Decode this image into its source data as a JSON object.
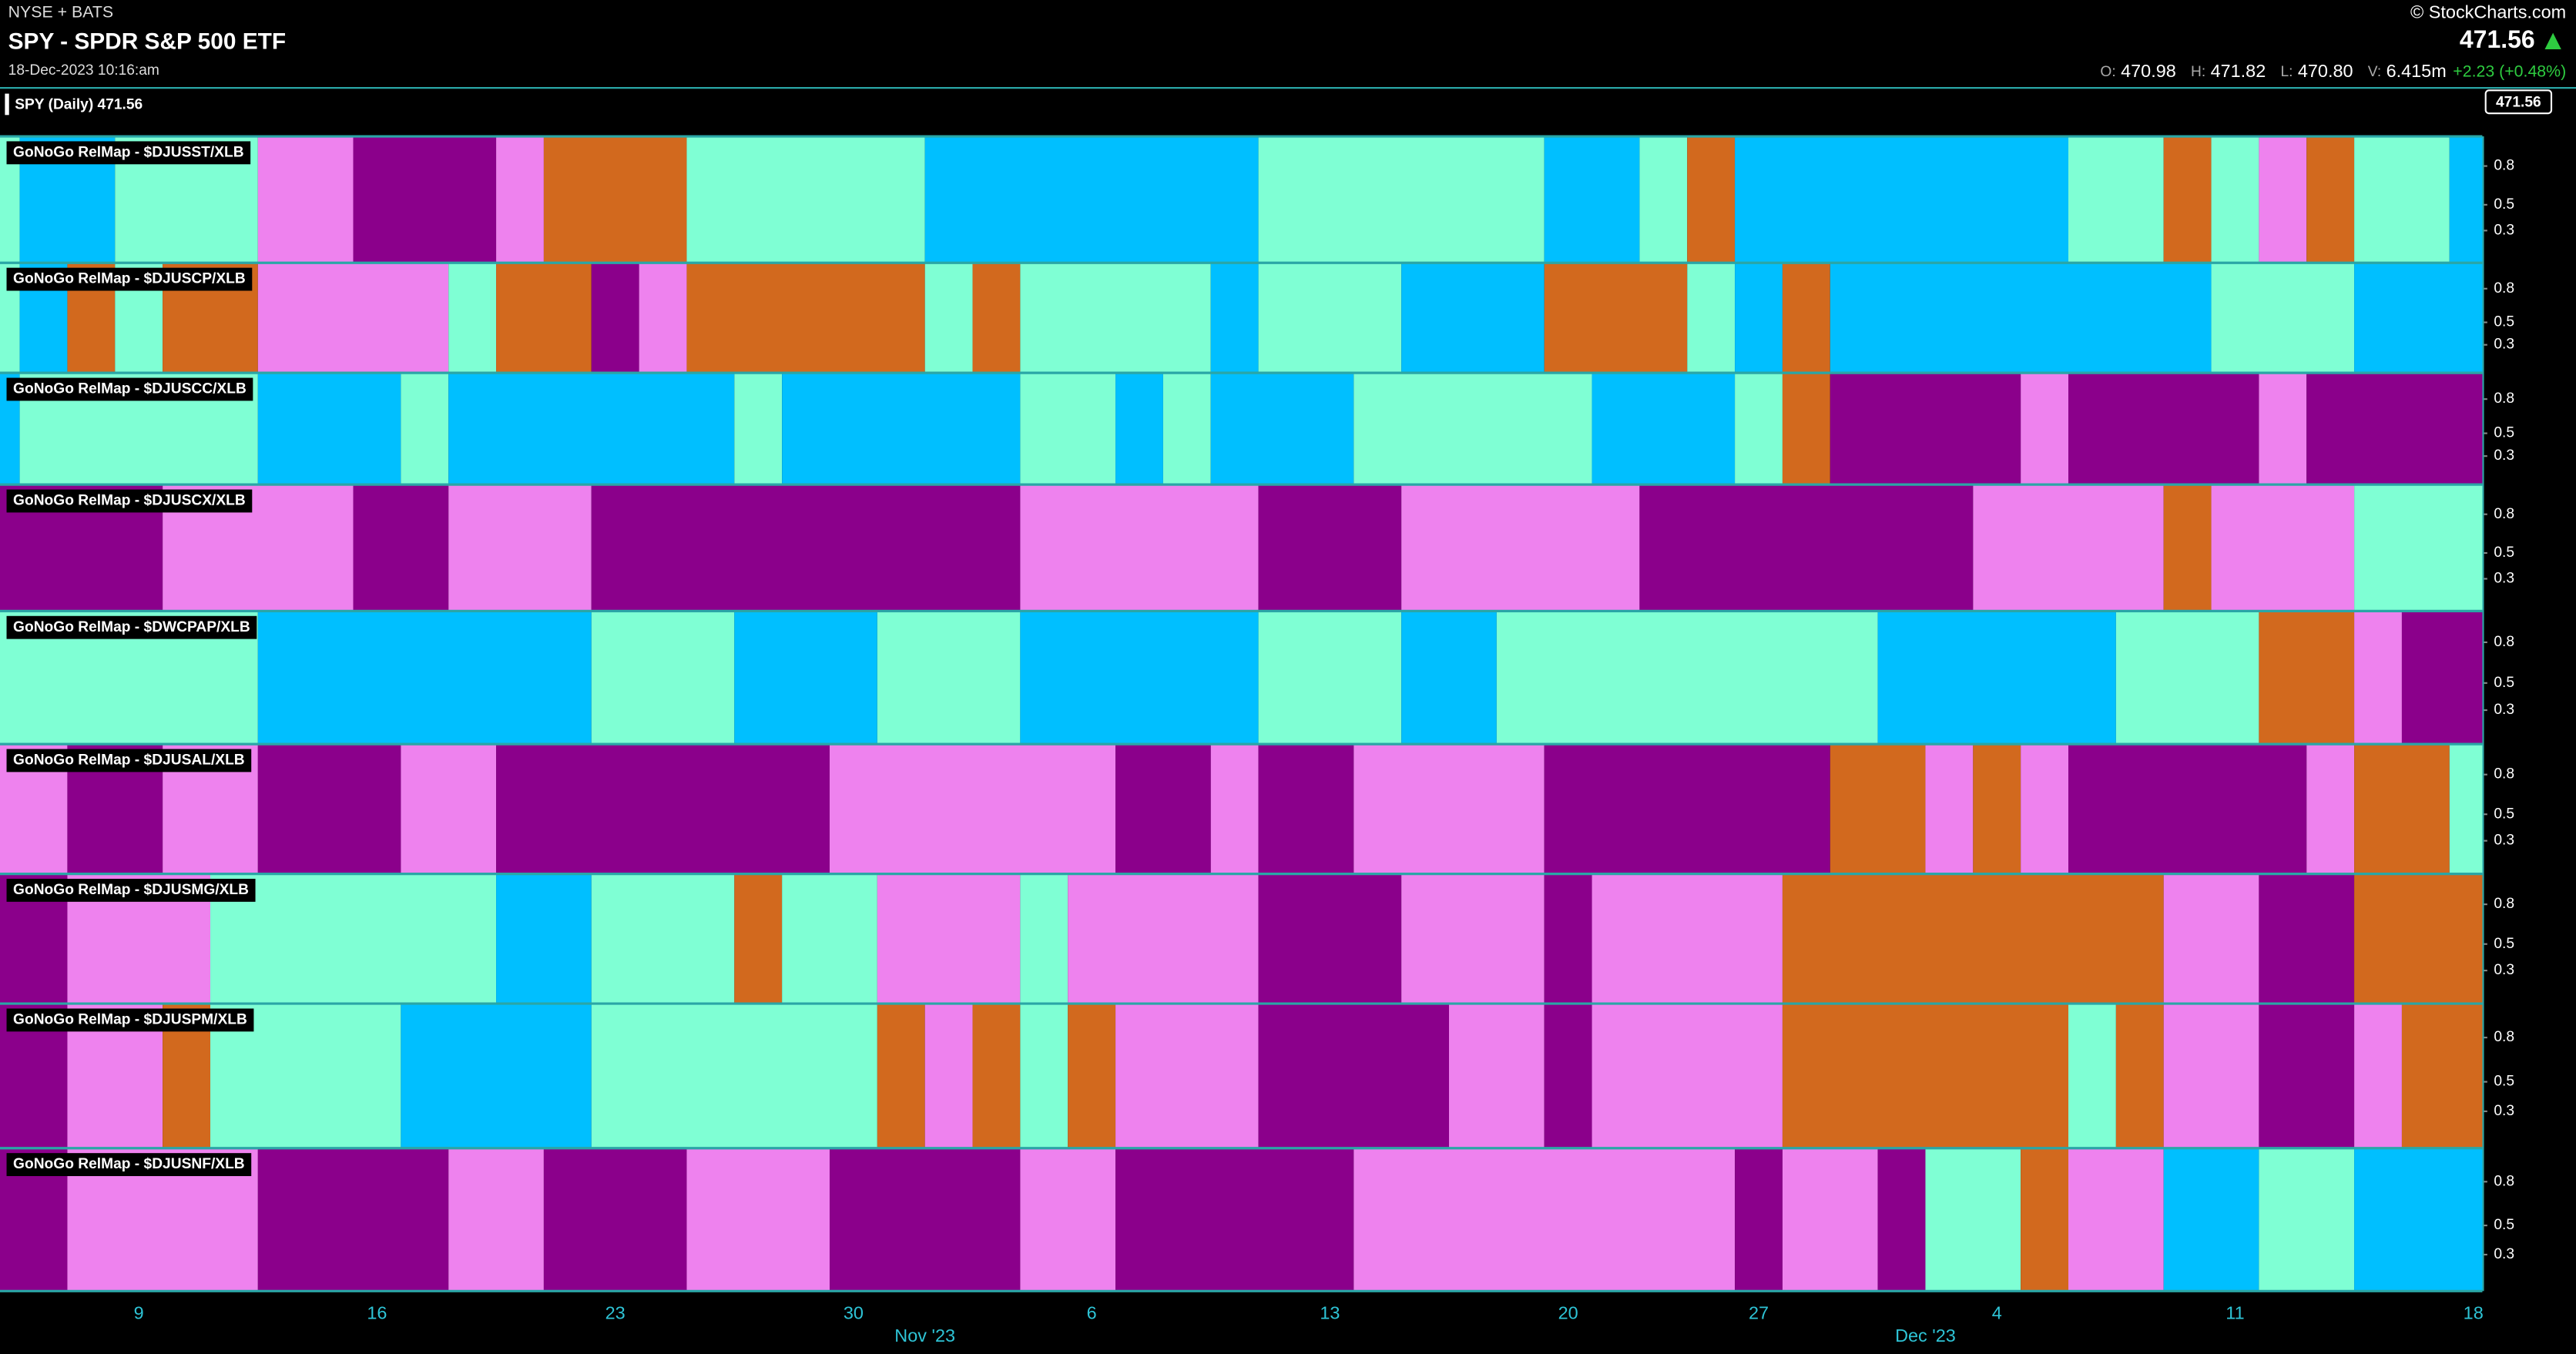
{
  "header": {
    "exchange": "NYSE + BATS",
    "title": "SPY - SPDR S&P 500 ETF",
    "timestamp": "18-Dec-2023 10:16:am",
    "source": "© StockCharts.com",
    "last": "471.56",
    "quote": [
      {
        "label": "O:",
        "value": "470.98"
      },
      {
        "label": "H:",
        "value": "471.82"
      },
      {
        "label": "L:",
        "value": "470.80"
      },
      {
        "label": "V:",
        "value": "6.415m"
      }
    ],
    "change": "+2.23 (+0.48%)"
  },
  "price_pane": {
    "label": "SPY (Daily) 471.56",
    "last": "471.56"
  },
  "chart_data": {
    "type": "relmap",
    "categories": [
      null,
      null,
      null,
      "9",
      null,
      null,
      null,
      null,
      "16",
      null,
      null,
      null,
      null,
      "23",
      null,
      null,
      null,
      null,
      "30",
      null,
      null,
      null,
      null,
      "6",
      null,
      null,
      null,
      null,
      "13",
      null,
      null,
      null,
      null,
      "20",
      null,
      null,
      null,
      "27",
      null,
      null,
      null,
      null,
      "4",
      null,
      null,
      null,
      null,
      "11",
      null,
      null,
      null,
      null,
      "18"
    ],
    "months": [
      null,
      null,
      null,
      null,
      null,
      null,
      null,
      null,
      null,
      null,
      null,
      null,
      null,
      null,
      null,
      null,
      null,
      null,
      null,
      null,
      "Nov '23",
      null,
      null,
      null,
      null,
      null,
      null,
      null,
      null,
      null,
      null,
      null,
      null,
      null,
      null,
      null,
      null,
      null,
      null,
      null,
      null,
      "Dec '23",
      null,
      null,
      null,
      null,
      null,
      null,
      null,
      null,
      null,
      null,
      null
    ],
    "ylim": [
      0.05,
      1.03
    ],
    "yticks": [
      0.8,
      0.5,
      0.3
    ],
    "palette": {
      "A": "#7fffd4",
      "C": "#00bfff",
      "P": "#ee82ee",
      "U": "#8b008b",
      "O": "#d2691e"
    },
    "panels": [
      {
        "name": "GoNoGo RelMap - $DJUSST/XLB",
        "segments": [
          {
            "color": "A",
            "days": 1
          },
          {
            "color": "C",
            "days": 2
          },
          {
            "color": "A",
            "days": 3
          },
          {
            "color": "P",
            "days": 2
          },
          {
            "color": "U",
            "days": 3
          },
          {
            "color": "P",
            "days": 1
          },
          {
            "color": "O",
            "days": 3
          },
          {
            "color": "A",
            "days": 5
          },
          {
            "color": "C",
            "days": 7
          },
          {
            "color": "A",
            "days": 6
          },
          {
            "color": "C",
            "days": 2
          },
          {
            "color": "A",
            "days": 1
          },
          {
            "color": "O",
            "days": 1
          },
          {
            "color": "C",
            "days": 7
          },
          {
            "color": "A",
            "days": 2
          },
          {
            "color": "O",
            "days": 1
          },
          {
            "color": "A",
            "days": 1
          },
          {
            "color": "P",
            "days": 1
          },
          {
            "color": "O",
            "days": 1
          },
          {
            "color": "A",
            "days": 2
          },
          {
            "color": "C",
            "days": 1
          }
        ]
      },
      {
        "name": "GoNoGo RelMap - $DJUSCP/XLB",
        "segments": [
          {
            "color": "A",
            "days": 1
          },
          {
            "color": "C",
            "days": 1
          },
          {
            "color": "O",
            "days": 1
          },
          {
            "color": "A",
            "days": 1
          },
          {
            "color": "O",
            "days": 2
          },
          {
            "color": "P",
            "days": 4
          },
          {
            "color": "A",
            "days": 1
          },
          {
            "color": "O",
            "days": 2
          },
          {
            "color": "U",
            "days": 1
          },
          {
            "color": "P",
            "days": 1
          },
          {
            "color": "O",
            "days": 5
          },
          {
            "color": "A",
            "days": 1
          },
          {
            "color": "O",
            "days": 1
          },
          {
            "color": "A",
            "days": 4
          },
          {
            "color": "C",
            "days": 1
          },
          {
            "color": "A",
            "days": 3
          },
          {
            "color": "C",
            "days": 3
          },
          {
            "color": "O",
            "days": 3
          },
          {
            "color": "A",
            "days": 1
          },
          {
            "color": "C",
            "days": 1
          },
          {
            "color": "O",
            "days": 1
          },
          {
            "color": "C",
            "days": 8
          },
          {
            "color": "A",
            "days": 3
          },
          {
            "color": "C",
            "days": 3
          }
        ]
      },
      {
        "name": "GoNoGo RelMap - $DJUSCC/XLB",
        "segments": [
          {
            "color": "C",
            "days": 1
          },
          {
            "color": "A",
            "days": 5
          },
          {
            "color": "C",
            "days": 3
          },
          {
            "color": "A",
            "days": 1
          },
          {
            "color": "C",
            "days": 6
          },
          {
            "color": "A",
            "days": 1
          },
          {
            "color": "C",
            "days": 5
          },
          {
            "color": "A",
            "days": 2
          },
          {
            "color": "C",
            "days": 1
          },
          {
            "color": "A",
            "days": 1
          },
          {
            "color": "C",
            "days": 3
          },
          {
            "color": "A",
            "days": 5
          },
          {
            "color": "C",
            "days": 3
          },
          {
            "color": "A",
            "days": 1
          },
          {
            "color": "O",
            "days": 1
          },
          {
            "color": "U",
            "days": 4
          },
          {
            "color": "P",
            "days": 1
          },
          {
            "color": "U",
            "days": 4
          },
          {
            "color": "P",
            "days": 1
          },
          {
            "color": "U",
            "days": 4
          }
        ]
      },
      {
        "name": "GoNoGo RelMap - $DJUSCX/XLB",
        "segments": [
          {
            "color": "U",
            "days": 4
          },
          {
            "color": "P",
            "days": 4
          },
          {
            "color": "U",
            "days": 2
          },
          {
            "color": "P",
            "days": 3
          },
          {
            "color": "U",
            "days": 9
          },
          {
            "color": "P",
            "days": 5
          },
          {
            "color": "U",
            "days": 3
          },
          {
            "color": "P",
            "days": 5
          },
          {
            "color": "U",
            "days": 7
          },
          {
            "color": "P",
            "days": 4
          },
          {
            "color": "O",
            "days": 1
          },
          {
            "color": "P",
            "days": 3
          },
          {
            "color": "A",
            "days": 3
          }
        ]
      },
      {
        "name": "GoNoGo RelMap - $DWCPAP/XLB",
        "segments": [
          {
            "color": "A",
            "days": 6
          },
          {
            "color": "C",
            "days": 7
          },
          {
            "color": "A",
            "days": 3
          },
          {
            "color": "C",
            "days": 3
          },
          {
            "color": "A",
            "days": 3
          },
          {
            "color": "C",
            "days": 5
          },
          {
            "color": "A",
            "days": 3
          },
          {
            "color": "C",
            "days": 2
          },
          {
            "color": "A",
            "days": 8
          },
          {
            "color": "C",
            "days": 5
          },
          {
            "color": "A",
            "days": 3
          },
          {
            "color": "O",
            "days": 2
          },
          {
            "color": "P",
            "days": 1
          },
          {
            "color": "U",
            "days": 2
          }
        ]
      },
      {
        "name": "GoNoGo RelMap - $DJUSAL/XLB",
        "segments": [
          {
            "color": "P",
            "days": 2
          },
          {
            "color": "U",
            "days": 2
          },
          {
            "color": "P",
            "days": 2
          },
          {
            "color": "U",
            "days": 3
          },
          {
            "color": "P",
            "days": 2
          },
          {
            "color": "U",
            "days": 7
          },
          {
            "color": "P",
            "days": 6
          },
          {
            "color": "U",
            "days": 2
          },
          {
            "color": "P",
            "days": 1
          },
          {
            "color": "U",
            "days": 2
          },
          {
            "color": "P",
            "days": 4
          },
          {
            "color": "U",
            "days": 6
          },
          {
            "color": "O",
            "days": 2
          },
          {
            "color": "P",
            "days": 1
          },
          {
            "color": "O",
            "days": 1
          },
          {
            "color": "P",
            "days": 1
          },
          {
            "color": "U",
            "days": 5
          },
          {
            "color": "P",
            "days": 1
          },
          {
            "color": "O",
            "days": 2
          },
          {
            "color": "A",
            "days": 1
          }
        ]
      },
      {
        "name": "GoNoGo RelMap - $DJUSMG/XLB",
        "segments": [
          {
            "color": "U",
            "days": 2
          },
          {
            "color": "P",
            "days": 3
          },
          {
            "color": "A",
            "days": 6
          },
          {
            "color": "C",
            "days": 2
          },
          {
            "color": "A",
            "days": 3
          },
          {
            "color": "O",
            "days": 1
          },
          {
            "color": "A",
            "days": 2
          },
          {
            "color": "P",
            "days": 3
          },
          {
            "color": "A",
            "days": 1
          },
          {
            "color": "P",
            "days": 4
          },
          {
            "color": "U",
            "days": 3
          },
          {
            "color": "P",
            "days": 3
          },
          {
            "color": "U",
            "days": 1
          },
          {
            "color": "P",
            "days": 4
          },
          {
            "color": "O",
            "days": 8
          },
          {
            "color": "P",
            "days": 2
          },
          {
            "color": "U",
            "days": 2
          },
          {
            "color": "O",
            "days": 3
          }
        ]
      },
      {
        "name": "GoNoGo RelMap - $DJUSPM/XLB",
        "segments": [
          {
            "color": "U",
            "days": 2
          },
          {
            "color": "P",
            "days": 2
          },
          {
            "color": "O",
            "days": 1
          },
          {
            "color": "A",
            "days": 4
          },
          {
            "color": "C",
            "days": 4
          },
          {
            "color": "A",
            "days": 6
          },
          {
            "color": "O",
            "days": 1
          },
          {
            "color": "P",
            "days": 1
          },
          {
            "color": "O",
            "days": 1
          },
          {
            "color": "A",
            "days": 1
          },
          {
            "color": "O",
            "days": 1
          },
          {
            "color": "P",
            "days": 3
          },
          {
            "color": "U",
            "days": 4
          },
          {
            "color": "P",
            "days": 2
          },
          {
            "color": "U",
            "days": 1
          },
          {
            "color": "P",
            "days": 4
          },
          {
            "color": "O",
            "days": 6
          },
          {
            "color": "A",
            "days": 1
          },
          {
            "color": "O",
            "days": 1
          },
          {
            "color": "P",
            "days": 2
          },
          {
            "color": "U",
            "days": 2
          },
          {
            "color": "P",
            "days": 1
          },
          {
            "color": "O",
            "days": 2
          }
        ]
      },
      {
        "name": "GoNoGo RelMap - $DJUSNF/XLB",
        "segments": [
          {
            "color": "U",
            "days": 2
          },
          {
            "color": "P",
            "days": 4
          },
          {
            "color": "U",
            "days": 4
          },
          {
            "color": "P",
            "days": 2
          },
          {
            "color": "U",
            "days": 3
          },
          {
            "color": "P",
            "days": 3
          },
          {
            "color": "U",
            "days": 4
          },
          {
            "color": "P",
            "days": 2
          },
          {
            "color": "U",
            "days": 5
          },
          {
            "color": "P",
            "days": 8
          },
          {
            "color": "U",
            "days": 1
          },
          {
            "color": "P",
            "days": 2
          },
          {
            "color": "U",
            "days": 1
          },
          {
            "color": "A",
            "days": 2
          },
          {
            "color": "O",
            "days": 1
          },
          {
            "color": "P",
            "days": 2
          },
          {
            "color": "C",
            "days": 2
          },
          {
            "color": "A",
            "days": 2
          },
          {
            "color": "C",
            "days": 3
          }
        ]
      }
    ]
  }
}
